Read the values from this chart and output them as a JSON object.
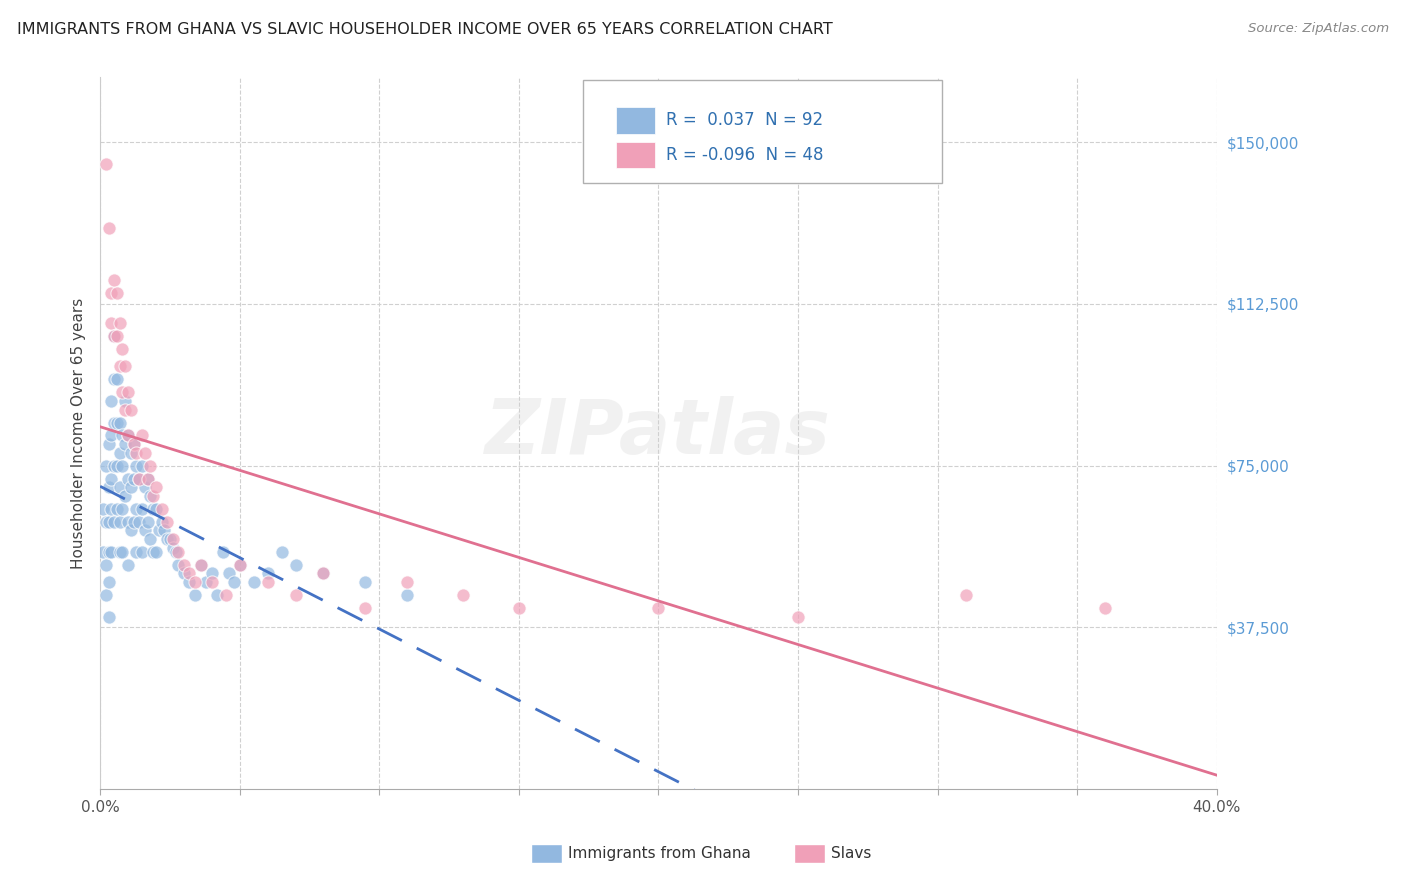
{
  "title": "IMMIGRANTS FROM GHANA VS SLAVIC HOUSEHOLDER INCOME OVER 65 YEARS CORRELATION CHART",
  "source": "Source: ZipAtlas.com",
  "ylabel": "Householder Income Over 65 years",
  "yticks": [
    0,
    37500,
    75000,
    112500,
    150000
  ],
  "xlim": [
    0.0,
    0.4
  ],
  "ylim": [
    0,
    165000
  ],
  "ghana_color": "#92b8e0",
  "slavs_color": "#f0a0b8",
  "ghana_line_color": "#4472c4",
  "slavs_line_color": "#e07090",
  "background_color": "#ffffff",
  "grid_color": "#d0d0d0",
  "ghana_x": [
    0.001,
    0.001,
    0.002,
    0.002,
    0.002,
    0.002,
    0.003,
    0.003,
    0.003,
    0.003,
    0.003,
    0.003,
    0.004,
    0.004,
    0.004,
    0.004,
    0.004,
    0.005,
    0.005,
    0.005,
    0.005,
    0.005,
    0.006,
    0.006,
    0.006,
    0.006,
    0.007,
    0.007,
    0.007,
    0.007,
    0.007,
    0.008,
    0.008,
    0.008,
    0.008,
    0.009,
    0.009,
    0.009,
    0.01,
    0.01,
    0.01,
    0.01,
    0.011,
    0.011,
    0.011,
    0.012,
    0.012,
    0.012,
    0.013,
    0.013,
    0.013,
    0.014,
    0.014,
    0.015,
    0.015,
    0.015,
    0.016,
    0.016,
    0.017,
    0.017,
    0.018,
    0.018,
    0.019,
    0.019,
    0.02,
    0.02,
    0.021,
    0.022,
    0.023,
    0.024,
    0.025,
    0.026,
    0.027,
    0.028,
    0.03,
    0.032,
    0.034,
    0.036,
    0.038,
    0.04,
    0.042,
    0.044,
    0.046,
    0.048,
    0.05,
    0.055,
    0.06,
    0.065,
    0.07,
    0.08,
    0.095,
    0.11
  ],
  "ghana_y": [
    65000,
    55000,
    75000,
    62000,
    52000,
    45000,
    80000,
    70000,
    62000,
    55000,
    48000,
    40000,
    90000,
    82000,
    72000,
    65000,
    55000,
    105000,
    95000,
    85000,
    75000,
    62000,
    95000,
    85000,
    75000,
    65000,
    85000,
    78000,
    70000,
    62000,
    55000,
    82000,
    75000,
    65000,
    55000,
    90000,
    80000,
    68000,
    82000,
    72000,
    62000,
    52000,
    78000,
    70000,
    60000,
    80000,
    72000,
    62000,
    75000,
    65000,
    55000,
    72000,
    62000,
    75000,
    65000,
    55000,
    70000,
    60000,
    72000,
    62000,
    68000,
    58000,
    65000,
    55000,
    65000,
    55000,
    60000,
    62000,
    60000,
    58000,
    58000,
    56000,
    55000,
    52000,
    50000,
    48000,
    45000,
    52000,
    48000,
    50000,
    45000,
    55000,
    50000,
    48000,
    52000,
    48000,
    50000,
    55000,
    52000,
    50000,
    48000,
    45000
  ],
  "slavs_x": [
    0.002,
    0.003,
    0.004,
    0.004,
    0.005,
    0.005,
    0.006,
    0.006,
    0.007,
    0.007,
    0.008,
    0.008,
    0.009,
    0.009,
    0.01,
    0.01,
    0.011,
    0.012,
    0.013,
    0.014,
    0.015,
    0.016,
    0.017,
    0.018,
    0.019,
    0.02,
    0.022,
    0.024,
    0.026,
    0.028,
    0.03,
    0.032,
    0.034,
    0.036,
    0.04,
    0.045,
    0.05,
    0.06,
    0.07,
    0.08,
    0.095,
    0.11,
    0.13,
    0.15,
    0.2,
    0.25,
    0.31,
    0.36
  ],
  "slavs_y": [
    145000,
    130000,
    115000,
    108000,
    118000,
    105000,
    115000,
    105000,
    108000,
    98000,
    102000,
    92000,
    98000,
    88000,
    92000,
    82000,
    88000,
    80000,
    78000,
    72000,
    82000,
    78000,
    72000,
    75000,
    68000,
    70000,
    65000,
    62000,
    58000,
    55000,
    52000,
    50000,
    48000,
    52000,
    48000,
    45000,
    52000,
    48000,
    45000,
    50000,
    42000,
    48000,
    45000,
    42000,
    42000,
    40000,
    45000,
    42000
  ]
}
